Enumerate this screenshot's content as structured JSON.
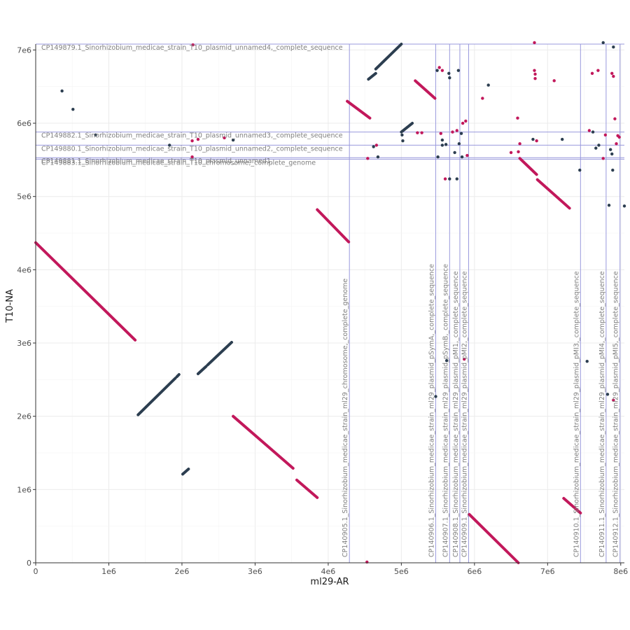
{
  "chart_data": {
    "type": "scatter",
    "title": "",
    "xlabel": "ml29-AR",
    "ylabel": "T10-NA",
    "xlim": [
      0,
      8050000
    ],
    "ylim": [
      0,
      7080000
    ],
    "x_ticks": [
      {
        "value": 0,
        "label": "0"
      },
      {
        "value": 1000000,
        "label": "1e6"
      },
      {
        "value": 2000000,
        "label": "2e6"
      },
      {
        "value": 3000000,
        "label": "3e6"
      },
      {
        "value": 4000000,
        "label": "4e6"
      },
      {
        "value": 5000000,
        "label": "5e6"
      },
      {
        "value": 6000000,
        "label": "6e6"
      },
      {
        "value": 7000000,
        "label": "7e6"
      },
      {
        "value": 8000000,
        "label": "8e6"
      }
    ],
    "y_ticks": [
      {
        "value": 0,
        "label": "0"
      },
      {
        "value": 1000000,
        "label": "1e6"
      },
      {
        "value": 2000000,
        "label": "2e6"
      },
      {
        "value": 3000000,
        "label": "3e6"
      },
      {
        "value": 4000000,
        "label": "4e6"
      },
      {
        "value": 5000000,
        "label": "5e6"
      },
      {
        "value": 6000000,
        "label": "6e6"
      },
      {
        "value": 7000000,
        "label": "7e6"
      }
    ],
    "grid": true,
    "colors": {
      "forward": "#2c3e50",
      "reverse": "#c2185b",
      "boundary": "#9999dd",
      "grid": "#ebebeb"
    },
    "x_boundaries": [
      {
        "value": 4290000,
        "label": "CP140905.1_Sinorhizobium_medicae_strain_ml29_chromosome,_complete_genome"
      },
      {
        "value": 5470000,
        "label": "CP140906.1_Sinorhizobium_medicae_strain_ml29_plasmid_pSymA,_complete_sequence"
      },
      {
        "value": 5660000,
        "label": "CP140907.1_Sinorhizobium_medicae_strain_ml29_plasmid_pSymB,_complete_sequence"
      },
      {
        "value": 5800000,
        "label": "CP140908.1_Sinorhizobium_medicae_strain_ml29_plasmid_pMI1,_complete_sequence"
      },
      {
        "value": 5920000,
        "label": "CP140909.1_Sinorhizobium_medicae_strain_ml29_plasmid_pMI2,_complete_sequence"
      },
      {
        "value": 7450000,
        "label": "CP140910.1_Sinorhizobium_medicae_strain_ml29_plasmid_pMI3,_complete_sequence"
      },
      {
        "value": 7800000,
        "label": "CP140911.1_Sinorhizobium_medicae_strain_ml29_plasmid_pMI4,_complete_sequence"
      },
      {
        "value": 7990000,
        "label": "CP140912.1_Sinorhizobium_medicae_strain_ml29_plasmid_pMI5,_complete_sequence"
      }
    ],
    "y_boundaries": [
      {
        "value": 7080000,
        "label": "CP149879.1_Sinorhizobium_medicae_strain_T10_plasmid_unnamed4,_complete_sequence"
      },
      {
        "value": 5880000,
        "label": "CP149882.1_Sinorhizobium_medicae_strain_T10_plasmid_unnamed3,_complete_sequence"
      },
      {
        "value": 5700000,
        "label": "CP149880.1_Sinorhizobium_medicae_strain_T10_plasmid_unnamed2,_complete_sequence"
      },
      {
        "value": 5530000,
        "label": "CP149881.1_Sinorhizobium_medicae_strain_T10_plasmid_unnamed1,"
      },
      {
        "value": 5510000,
        "label": "CP149883.1_Sinorhizobium_medicae_strain_T10_chromosome,_complete_genome"
      }
    ],
    "series": [
      {
        "key": "reverse",
        "segments": [
          {
            "x": [
              0,
              1360000
            ],
            "y": [
              4370000,
              3040000
            ]
          },
          {
            "x": [
              3850000,
              4280000
            ],
            "y": [
              4820000,
              4380000
            ]
          },
          {
            "x": [
              2700000,
              3520000
            ],
            "y": [
              2000000,
              1290000
            ]
          },
          {
            "x": [
              3570000,
              3850000
            ],
            "y": [
              1130000,
              890000
            ]
          },
          {
            "x": [
              4260000,
              4570000
            ],
            "y": [
              6300000,
              6070000
            ]
          },
          {
            "x": [
              5190000,
              5460000
            ],
            "y": [
              6580000,
              6340000
            ]
          },
          {
            "x": [
              5930000,
              6600000
            ],
            "y": [
              660000,
              0
            ]
          },
          {
            "x": [
              6620000,
              6850000
            ],
            "y": [
              5520000,
              5300000
            ]
          },
          {
            "x": [
              6860000,
              7300000
            ],
            "y": [
              5230000,
              4840000
            ]
          },
          {
            "x": [
              7220000,
              7450000
            ],
            "y": [
              880000,
              680000
            ]
          }
        ],
        "points": [
          {
            "x": 2150000,
            "y": 7070000
          },
          {
            "x": 2140000,
            "y": 5760000
          },
          {
            "x": 2220000,
            "y": 5780000
          },
          {
            "x": 2580000,
            "y": 5800000
          },
          {
            "x": 2140000,
            "y": 5540000
          },
          {
            "x": 4540000,
            "y": 5520000
          },
          {
            "x": 4660000,
            "y": 5700000
          },
          {
            "x": 4530000,
            "y": 10000
          },
          {
            "x": 5220000,
            "y": 5870000
          },
          {
            "x": 5280000,
            "y": 5870000
          },
          {
            "x": 5520000,
            "y": 6760000
          },
          {
            "x": 5560000,
            "y": 6720000
          },
          {
            "x": 5600000,
            "y": 5240000
          },
          {
            "x": 5540000,
            "y": 5860000
          },
          {
            "x": 5700000,
            "y": 5880000
          },
          {
            "x": 5760000,
            "y": 5900000
          },
          {
            "x": 5840000,
            "y": 6000000
          },
          {
            "x": 5880000,
            "y": 6030000
          },
          {
            "x": 5900000,
            "y": 5560000
          },
          {
            "x": 5860000,
            "y": 2780000
          },
          {
            "x": 6110000,
            "y": 6340000
          },
          {
            "x": 6500000,
            "y": 5600000
          },
          {
            "x": 6590000,
            "y": 6070000
          },
          {
            "x": 6620000,
            "y": 5720000
          },
          {
            "x": 6600000,
            "y": 5610000
          },
          {
            "x": 6820000,
            "y": 6720000
          },
          {
            "x": 6830000,
            "y": 6670000
          },
          {
            "x": 6830000,
            "y": 6610000
          },
          {
            "x": 6850000,
            "y": 5760000
          },
          {
            "x": 6820000,
            "y": 7100000
          },
          {
            "x": 7090000,
            "y": 6580000
          },
          {
            "x": 7570000,
            "y": 5900000
          },
          {
            "x": 7610000,
            "y": 6680000
          },
          {
            "x": 7690000,
            "y": 6720000
          },
          {
            "x": 7760000,
            "y": 5520000
          },
          {
            "x": 7790000,
            "y": 5840000
          },
          {
            "x": 7880000,
            "y": 6680000
          },
          {
            "x": 7900000,
            "y": 6640000
          },
          {
            "x": 7920000,
            "y": 6060000
          },
          {
            "x": 7960000,
            "y": 5830000
          },
          {
            "x": 7980000,
            "y": 5810000
          },
          {
            "x": 7940000,
            "y": 5720000
          },
          {
            "x": 7900000,
            "y": 2220000
          }
        ]
      },
      {
        "key": "forward",
        "segments": [
          {
            "x": [
              1400000,
              1910000
            ],
            "y": [
              2020000,
              2520000
            ]
          },
          {
            "x": [
              1930000,
              1960000
            ],
            "y": [
              2540000,
              2570000
            ]
          },
          {
            "x": [
              2010000,
              2090000
            ],
            "y": [
              1210000,
              1280000
            ]
          },
          {
            "x": [
              2220000,
              2330000
            ],
            "y": [
              2580000,
              2680000
            ]
          },
          {
            "x": [
              2350000,
              2680000
            ],
            "y": [
              2700000,
              3010000
            ]
          },
          {
            "x": [
              4650000,
              5000000
            ],
            "y": [
              6740000,
              7080000
            ]
          },
          {
            "x": [
              4550000,
              4650000
            ],
            "y": [
              6600000,
              6680000
            ]
          },
          {
            "x": [
              5000000,
              5150000
            ],
            "y": [
              5880000,
              6000000
            ]
          }
        ],
        "points": [
          {
            "x": 360000,
            "y": 6440000
          },
          {
            "x": 510000,
            "y": 6190000
          },
          {
            "x": 820000,
            "y": 5840000
          },
          {
            "x": 1830000,
            "y": 5700000
          },
          {
            "x": 2700000,
            "y": 5770000
          },
          {
            "x": 4620000,
            "y": 5680000
          },
          {
            "x": 4680000,
            "y": 5540000
          },
          {
            "x": 5020000,
            "y": 5760000
          },
          {
            "x": 5010000,
            "y": 5840000
          },
          {
            "x": 5490000,
            "y": 6720000
          },
          {
            "x": 5500000,
            "y": 5540000
          },
          {
            "x": 5560000,
            "y": 5770000
          },
          {
            "x": 5560000,
            "y": 5700000
          },
          {
            "x": 5610000,
            "y": 5710000
          },
          {
            "x": 5650000,
            "y": 6680000
          },
          {
            "x": 5660000,
            "y": 6620000
          },
          {
            "x": 5660000,
            "y": 5240000
          },
          {
            "x": 5730000,
            "y": 5600000
          },
          {
            "x": 5760000,
            "y": 5240000
          },
          {
            "x": 5790000,
            "y": 5720000
          },
          {
            "x": 5780000,
            "y": 6720000
          },
          {
            "x": 5820000,
            "y": 5860000
          },
          {
            "x": 5830000,
            "y": 5540000
          },
          {
            "x": 5470000,
            "y": 2270000
          },
          {
            "x": 5620000,
            "y": 2760000
          },
          {
            "x": 6190000,
            "y": 6520000
          },
          {
            "x": 6800000,
            "y": 5780000
          },
          {
            "x": 7200000,
            "y": 5780000
          },
          {
            "x": 7440000,
            "y": 5360000
          },
          {
            "x": 7540000,
            "y": 2750000
          },
          {
            "x": 7620000,
            "y": 5880000
          },
          {
            "x": 7660000,
            "y": 5660000
          },
          {
            "x": 7700000,
            "y": 5700000
          },
          {
            "x": 7760000,
            "y": 7100000
          },
          {
            "x": 7840000,
            "y": 4880000
          },
          {
            "x": 7880000,
            "y": 5580000
          },
          {
            "x": 7890000,
            "y": 5360000
          },
          {
            "x": 7900000,
            "y": 7040000
          },
          {
            "x": 7860000,
            "y": 5640000
          },
          {
            "x": 7820000,
            "y": 2300000
          },
          {
            "x": 8050000,
            "y": 4870000
          }
        ]
      }
    ]
  }
}
